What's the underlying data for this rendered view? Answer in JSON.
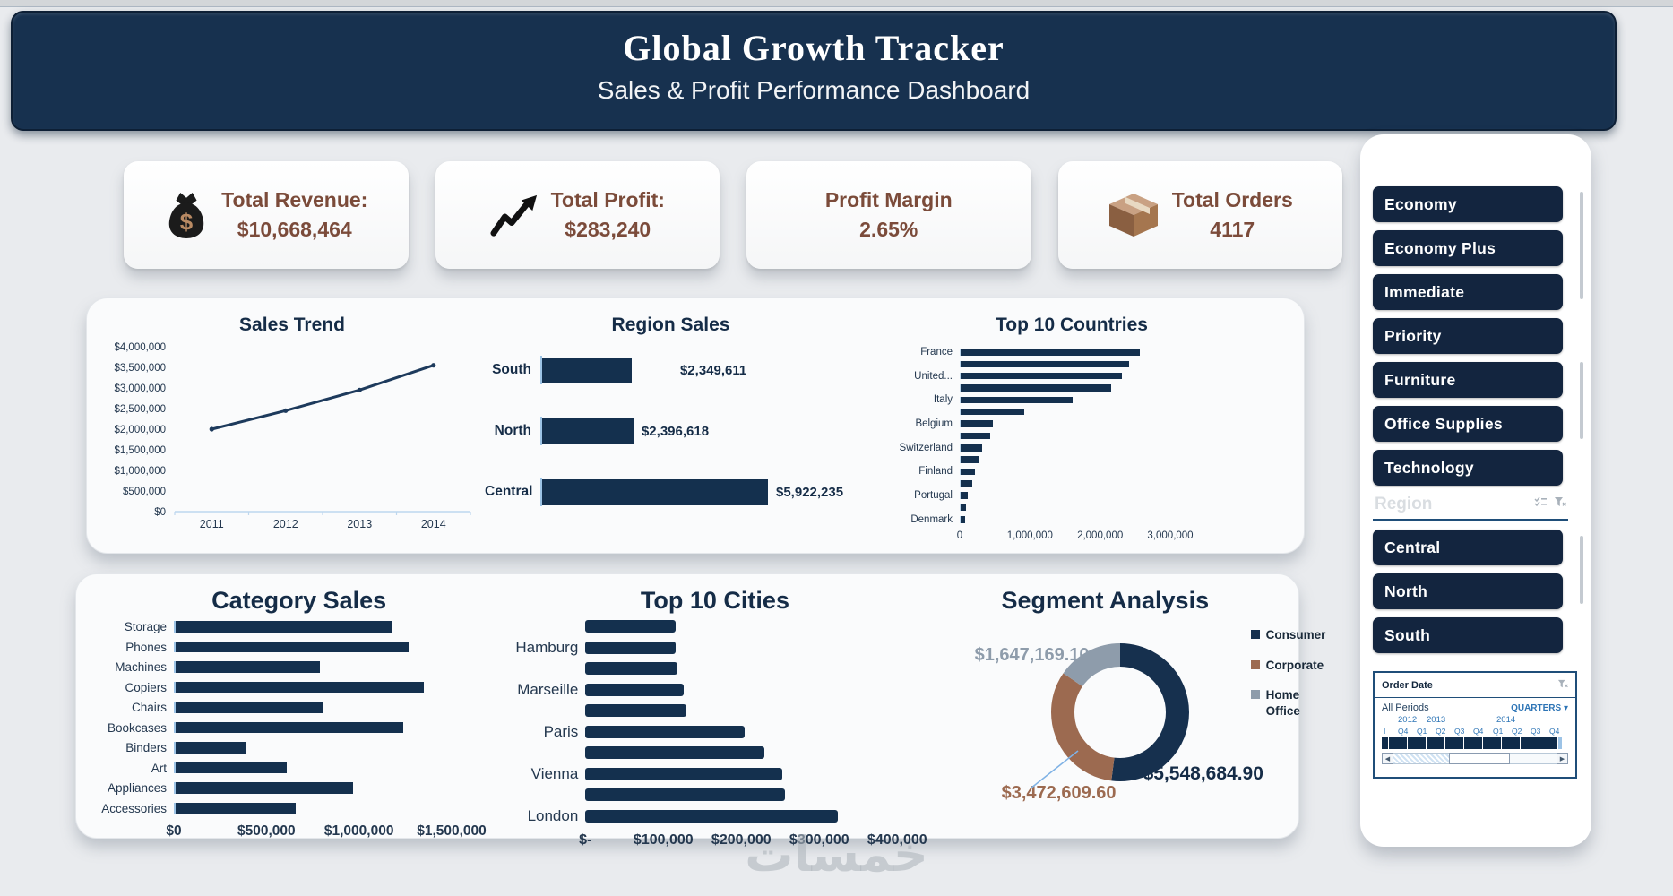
{
  "header": {
    "title": "Global Growth Tracker",
    "subtitle": "Sales & Profit Performance Dashboard"
  },
  "kpis": [
    {
      "icon": "money-bag-icon",
      "label": "Total Revenue:",
      "value": "$10,668,464"
    },
    {
      "icon": "growth-arrow-icon",
      "label": "Total Profit:",
      "value": "$283,240"
    },
    {
      "icon": null,
      "label": "Profit Margin",
      "value": "2.65%"
    },
    {
      "icon": "package-box-icon",
      "label": "Total Orders",
      "value": "4117"
    }
  ],
  "chart_data": [
    {
      "id": "sales_trend",
      "type": "line",
      "title": "Sales Trend",
      "x": [
        "2011",
        "2012",
        "2013",
        "2014"
      ],
      "values": [
        2000000,
        2450000,
        2950000,
        3550000
      ],
      "ylim": [
        0,
        4000000
      ],
      "ytick_step": 500000,
      "ytick_labels": [
        "$0",
        "$500,000",
        "$1,000,000",
        "$1,500,000",
        "$2,000,000",
        "$2,500,000",
        "$3,000,000",
        "$3,500,000",
        "$4,000,000"
      ],
      "grid": false,
      "legend": false
    },
    {
      "id": "region_sales",
      "type": "bar",
      "title": "Region Sales",
      "categories": [
        "South",
        "North",
        "Central"
      ],
      "values": [
        2349611,
        2396618,
        5922235
      ],
      "value_labels": [
        "$2,349,611",
        "$2,396,618",
        "$5,922,235"
      ]
    },
    {
      "id": "top_countries",
      "type": "bar",
      "title": "Top 10 Countries",
      "categories": [
        "France",
        "",
        "United...",
        "",
        "Italy",
        "",
        "Belgium",
        "",
        "Switzerland",
        "",
        "Finland",
        "",
        "Portugal",
        "",
        "Denmark"
      ],
      "values": [
        2550000,
        2400000,
        2300000,
        2150000,
        1600000,
        900000,
        460000,
        420000,
        300000,
        270000,
        200000,
        170000,
        100000,
        80000,
        60000
      ],
      "xlim": [
        0,
        3000000
      ],
      "xtick_labels": [
        "0",
        "1,000,000",
        "2,000,000",
        "3,000,000"
      ]
    },
    {
      "id": "category_sales",
      "type": "bar",
      "title": "Category Sales",
      "categories": [
        "Storage",
        "Phones",
        "Machines",
        "Copiers",
        "Chairs",
        "Bookcases",
        "Binders",
        "Art",
        "Appliances",
        "Accessories"
      ],
      "values": [
        1170000,
        1260000,
        780000,
        1340000,
        800000,
        1230000,
        380000,
        600000,
        960000,
        650000
      ],
      "xlim": [
        0,
        1500000
      ],
      "xtick_labels": [
        "$0",
        "$500,000",
        "$1,000,000",
        "$1,500,000"
      ]
    },
    {
      "id": "top_cities",
      "type": "bar",
      "title": "Top 10 Cities",
      "categories": [
        "",
        "Hamburg",
        "",
        "Marseille",
        "",
        "Paris",
        "",
        "Vienna",
        "",
        "London"
      ],
      "values": [
        116000,
        116000,
        118000,
        126000,
        129000,
        204000,
        230000,
        253000,
        256000,
        324000
      ],
      "xlim": [
        0,
        400000
      ],
      "xtick_labels": [
        "$-",
        "$100,000",
        "$200,000",
        "$300,000",
        "$400,000"
      ]
    },
    {
      "id": "segment_analysis",
      "type": "pie",
      "title": "Segment Analysis",
      "segments": [
        {
          "name": "Consumer",
          "value": 5548684.9,
          "label": "$5,548,684.90",
          "color": "#16304e"
        },
        {
          "name": "Corporate",
          "value": 3472609.6,
          "label": "$3,472,609.60",
          "color": "#9c6a50"
        },
        {
          "name": "Home Office",
          "value": 1647169.1,
          "label": "$1,647,169.10",
          "color": "#8e9cab"
        }
      ],
      "legend_position": "right"
    }
  ],
  "slicers": {
    "ship_mode": {
      "buttons": [
        "Economy",
        "Economy Plus",
        "Immediate",
        "Priority"
      ]
    },
    "category": {
      "buttons": [
        "Furniture",
        "Office Supplies",
        "Technology"
      ]
    },
    "region": {
      "title": "Region",
      "buttons": [
        "Central",
        "North",
        "South"
      ]
    }
  },
  "timeline": {
    "title": "Order Date",
    "all_periods": "All Periods",
    "granularity": "QUARTERS",
    "clipped_label": "I",
    "years": [
      "2012",
      "2013",
      "2014"
    ],
    "quarters": [
      "Q4",
      "Q1",
      "Q2",
      "Q3",
      "Q4",
      "Q1",
      "Q2",
      "Q3",
      "Q4"
    ]
  },
  "watermark": "خمسات",
  "colors": {
    "banner": "#17314f",
    "bar": "#14304e",
    "button": "#13253f",
    "accent_blue": "#2e75b6",
    "light_axis": "#9cc3e5",
    "axis_text": "#24384f",
    "kpi_text": "#7b4b3a",
    "consumer": "#16304e",
    "corporate": "#9c6a50",
    "home_office": "#8e9cab"
  }
}
